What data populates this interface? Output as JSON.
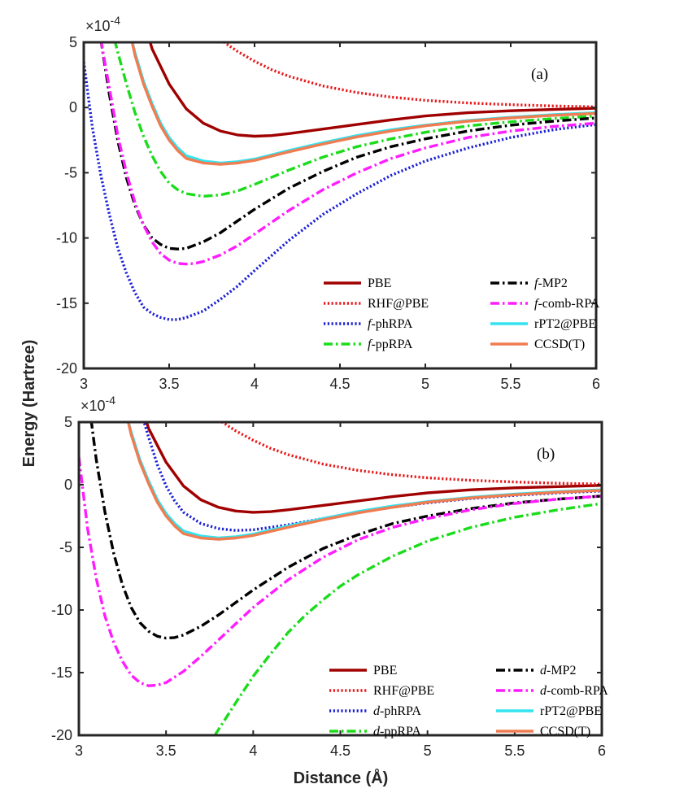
{
  "ylabel": "Energy (Hartree)",
  "xlabel": "Distance (Å)",
  "exponent_base": "×10",
  "exponent_power": "-4",
  "chart_data": [
    {
      "type": "line",
      "panel_label": "(a)",
      "xlim": [
        3,
        6
      ],
      "ylim": [
        -20,
        5
      ],
      "y_scale": "1e-4",
      "xticks": [
        "3",
        "3.5",
        "4",
        "4.5",
        "5",
        "5.5",
        "6"
      ],
      "yticks": [
        "5",
        "0",
        "-5",
        "-10",
        "-15",
        "-20"
      ],
      "legend_position": "bottom-right",
      "series": [
        {
          "name": "PBE",
          "prefix": "",
          "color": "#a00000",
          "style": "solid",
          "x": [
            3.3,
            3.4,
            3.5,
            3.6,
            3.7,
            3.8,
            3.9,
            4.0,
            4.1,
            4.2,
            4.4,
            4.6,
            4.8,
            5.0,
            5.25,
            5.5,
            5.75,
            6.0
          ],
          "y": [
            9.0,
            4.5,
            1.8,
            -0.1,
            -1.2,
            -1.8,
            -2.1,
            -2.2,
            -2.15,
            -2.0,
            -1.65,
            -1.3,
            -0.95,
            -0.65,
            -0.4,
            -0.25,
            -0.15,
            -0.05
          ]
        },
        {
          "name": "RHF@PBE",
          "prefix": "",
          "color": "#e8191b",
          "style": "dotted",
          "x": [
            3.8,
            3.9,
            4.0,
            4.1,
            4.2,
            4.4,
            4.6,
            4.8,
            5.0,
            5.25,
            5.5,
            5.75,
            6.0
          ],
          "y": [
            5.2,
            4.3,
            3.55,
            2.9,
            2.4,
            1.65,
            1.15,
            0.8,
            0.55,
            0.35,
            0.22,
            0.12,
            0.05
          ]
        },
        {
          "name": "phRPA",
          "prefix": "f-",
          "color": "#1c20d4",
          "style": "dotted",
          "x": [
            3.0,
            3.05,
            3.1,
            3.15,
            3.2,
            3.25,
            3.3,
            3.35,
            3.4,
            3.45,
            3.5,
            3.55,
            3.6,
            3.7,
            3.8,
            3.9,
            4.0,
            4.2,
            4.4,
            4.6,
            4.8,
            5.0,
            5.25,
            5.5,
            5.75,
            6.0
          ],
          "y": [
            3.5,
            -1.5,
            -5.2,
            -8.2,
            -10.8,
            -12.7,
            -14.2,
            -15.3,
            -15.8,
            -16.1,
            -16.25,
            -16.25,
            -16.1,
            -15.6,
            -14.7,
            -13.7,
            -12.5,
            -10.2,
            -8.2,
            -6.6,
            -5.2,
            -4.1,
            -3.1,
            -2.3,
            -1.7,
            -1.3
          ]
        },
        {
          "name": "ppRPA",
          "prefix": "f-",
          "color": "#1bdc1b",
          "style": "dashdot",
          "x": [
            3.18,
            3.2,
            3.25,
            3.3,
            3.35,
            3.4,
            3.45,
            3.5,
            3.55,
            3.6,
            3.7,
            3.8,
            3.9,
            4.0,
            4.2,
            4.4,
            4.6,
            4.8,
            5.0,
            5.25,
            5.5,
            5.75,
            6.0
          ],
          "y": [
            5.2,
            4.2,
            1.8,
            -0.4,
            -2.2,
            -3.7,
            -4.9,
            -5.8,
            -6.3,
            -6.6,
            -6.8,
            -6.7,
            -6.4,
            -5.9,
            -4.8,
            -3.8,
            -3.0,
            -2.4,
            -1.9,
            -1.4,
            -1.1,
            -0.85,
            -0.65
          ]
        },
        {
          "name": "MP2",
          "prefix": "f-",
          "color": "#000000",
          "style": "dashdot",
          "x": [
            3.1,
            3.15,
            3.2,
            3.25,
            3.3,
            3.35,
            3.4,
            3.45,
            3.5,
            3.55,
            3.6,
            3.7,
            3.8,
            3.9,
            4.0,
            4.2,
            4.4,
            4.6,
            4.8,
            5.0,
            5.25,
            5.5,
            5.75,
            6.0
          ],
          "y": [
            5.2,
            1.0,
            -2.6,
            -5.4,
            -7.5,
            -9.0,
            -10.0,
            -10.5,
            -10.8,
            -10.85,
            -10.8,
            -10.3,
            -9.6,
            -8.7,
            -7.8,
            -6.2,
            -4.9,
            -3.8,
            -3.0,
            -2.4,
            -1.8,
            -1.35,
            -1.05,
            -0.8
          ]
        },
        {
          "name": "comb-RPA",
          "prefix": "f-",
          "color": "#ff1cff",
          "style": "dashdot",
          "x": [
            3.1,
            3.15,
            3.2,
            3.25,
            3.3,
            3.35,
            3.4,
            3.45,
            3.5,
            3.55,
            3.6,
            3.65,
            3.7,
            3.8,
            3.9,
            4.0,
            4.2,
            4.4,
            4.6,
            4.8,
            5.0,
            5.25,
            5.5,
            5.75,
            6.0
          ],
          "y": [
            5.2,
            1.5,
            -2.2,
            -5.0,
            -7.3,
            -9.0,
            -10.3,
            -11.2,
            -11.7,
            -11.95,
            -12.0,
            -11.95,
            -11.8,
            -11.3,
            -10.6,
            -9.7,
            -7.9,
            -6.3,
            -5.0,
            -3.9,
            -3.1,
            -2.3,
            -1.8,
            -1.45,
            -1.2
          ]
        },
        {
          "name": "rPT2@PBE",
          "prefix": "",
          "color": "#33e3f0",
          "style": "solid",
          "x": [
            3.28,
            3.3,
            3.35,
            3.4,
            3.45,
            3.5,
            3.55,
            3.6,
            3.7,
            3.8,
            3.9,
            4.0,
            4.2,
            4.4,
            4.6,
            4.8,
            5.0,
            5.25,
            5.5,
            5.75,
            6.0
          ],
          "y": [
            5.2,
            4.2,
            2.0,
            0.3,
            -1.2,
            -2.3,
            -3.1,
            -3.7,
            -4.1,
            -4.25,
            -4.15,
            -3.95,
            -3.3,
            -2.7,
            -2.15,
            -1.7,
            -1.35,
            -1.0,
            -0.75,
            -0.55,
            -0.4
          ]
        },
        {
          "name": "CCSD(T)",
          "prefix": "",
          "color": "#f07c50",
          "style": "solid",
          "x": [
            3.28,
            3.3,
            3.35,
            3.4,
            3.45,
            3.5,
            3.55,
            3.6,
            3.7,
            3.8,
            3.9,
            4.0,
            4.2,
            4.4,
            4.6,
            4.8,
            5.0,
            5.25,
            5.5,
            5.75,
            6.0
          ],
          "y": [
            5.2,
            4.0,
            1.8,
            0.1,
            -1.4,
            -2.5,
            -3.3,
            -3.9,
            -4.25,
            -4.35,
            -4.25,
            -4.05,
            -3.4,
            -2.8,
            -2.25,
            -1.8,
            -1.4,
            -1.05,
            -0.8,
            -0.6,
            -0.45
          ]
        }
      ]
    },
    {
      "type": "line",
      "panel_label": "(b)",
      "xlim": [
        3,
        6
      ],
      "ylim": [
        -20,
        5
      ],
      "y_scale": "1e-4",
      "xticks": [
        "3",
        "3.5",
        "4",
        "4.5",
        "5",
        "5.5",
        "6"
      ],
      "yticks": [
        "5",
        "0",
        "-5",
        "-10",
        "-15",
        "-20"
      ],
      "legend_position": "bottom-right",
      "series": [
        {
          "name": "PBE",
          "prefix": "",
          "color": "#a00000",
          "style": "solid",
          "x": [
            3.3,
            3.4,
            3.5,
            3.6,
            3.7,
            3.8,
            3.9,
            4.0,
            4.1,
            4.2,
            4.4,
            4.6,
            4.8,
            5.0,
            5.25,
            5.5,
            5.75,
            6.0
          ],
          "y": [
            9.0,
            4.5,
            1.8,
            -0.1,
            -1.2,
            -1.8,
            -2.1,
            -2.2,
            -2.15,
            -2.0,
            -1.65,
            -1.3,
            -0.95,
            -0.65,
            -0.4,
            -0.25,
            -0.15,
            -0.05
          ]
        },
        {
          "name": "RHF@PBE",
          "prefix": "",
          "color": "#e8191b",
          "style": "dotted",
          "x": [
            3.8,
            3.9,
            4.0,
            4.1,
            4.2,
            4.4,
            4.6,
            4.8,
            5.0,
            5.25,
            5.5,
            5.75,
            6.0
          ],
          "y": [
            5.2,
            4.3,
            3.55,
            2.9,
            2.4,
            1.65,
            1.15,
            0.8,
            0.55,
            0.35,
            0.22,
            0.12,
            0.05
          ]
        },
        {
          "name": "phRPA",
          "prefix": "d-",
          "color": "#1c20d4",
          "style": "dotted",
          "x": [
            3.37,
            3.4,
            3.45,
            3.5,
            3.55,
            3.6,
            3.7,
            3.8,
            3.9,
            4.0,
            4.2,
            4.4,
            4.6,
            4.8,
            5.0,
            5.25,
            5.5,
            5.75,
            6.0
          ],
          "y": [
            5.2,
            3.8,
            1.6,
            -0.1,
            -1.3,
            -2.2,
            -3.1,
            -3.5,
            -3.65,
            -3.6,
            -3.2,
            -2.7,
            -2.2,
            -1.8,
            -1.45,
            -1.1,
            -0.85,
            -0.65,
            -0.5
          ]
        },
        {
          "name": "ppRPA",
          "prefix": "d-",
          "color": "#1bdc1b",
          "style": "dashdot",
          "x": [
            3.78,
            3.9,
            4.0,
            4.1,
            4.2,
            4.3,
            4.4,
            4.5,
            4.6,
            4.8,
            5.0,
            5.25,
            5.5,
            5.75,
            6.0
          ],
          "y": [
            -20,
            -17.4,
            -15.3,
            -13.5,
            -11.8,
            -10.4,
            -9.2,
            -8.1,
            -7.2,
            -5.7,
            -4.5,
            -3.4,
            -2.6,
            -2.0,
            -1.5
          ]
        },
        {
          "name": "MP2",
          "prefix": "d-",
          "color": "#000000",
          "style": "dashdot",
          "x": [
            3.07,
            3.1,
            3.15,
            3.2,
            3.25,
            3.3,
            3.35,
            3.4,
            3.45,
            3.5,
            3.55,
            3.6,
            3.7,
            3.8,
            3.9,
            4.0,
            4.2,
            4.4,
            4.6,
            4.8,
            5.0,
            5.25,
            5.5,
            5.75,
            6.0
          ],
          "y": [
            5.2,
            2.0,
            -2.2,
            -5.5,
            -8.0,
            -9.8,
            -11.0,
            -11.7,
            -12.1,
            -12.25,
            -12.2,
            -12.0,
            -11.3,
            -10.4,
            -9.4,
            -8.4,
            -6.6,
            -5.1,
            -4.0,
            -3.1,
            -2.5,
            -1.9,
            -1.45,
            -1.15,
            -0.9
          ]
        },
        {
          "name": "comb-RPA",
          "prefix": "d-",
          "color": "#ff1cff",
          "style": "dashdot",
          "x": [
            3.0,
            3.05,
            3.1,
            3.15,
            3.2,
            3.25,
            3.3,
            3.35,
            3.4,
            3.45,
            3.5,
            3.6,
            3.7,
            3.8,
            3.9,
            4.0,
            4.2,
            4.4,
            4.6,
            4.8,
            5.0,
            5.25,
            5.5,
            5.75,
            6.0
          ],
          "y": [
            2.2,
            -3.5,
            -7.5,
            -10.5,
            -12.6,
            -14.1,
            -15.2,
            -15.8,
            -16.05,
            -16.0,
            -15.8,
            -14.9,
            -13.7,
            -12.4,
            -11.1,
            -9.8,
            -7.6,
            -5.8,
            -4.4,
            -3.4,
            -2.7,
            -2.0,
            -1.5,
            -1.15,
            -0.9
          ]
        },
        {
          "name": "rPT2@PBE",
          "prefix": "",
          "color": "#33e3f0",
          "style": "solid",
          "x": [
            3.28,
            3.3,
            3.35,
            3.4,
            3.45,
            3.5,
            3.55,
            3.6,
            3.7,
            3.8,
            3.9,
            4.0,
            4.2,
            4.4,
            4.6,
            4.8,
            5.0,
            5.25,
            5.5,
            5.75,
            6.0
          ],
          "y": [
            5.2,
            4.2,
            2.0,
            0.3,
            -1.2,
            -2.3,
            -3.1,
            -3.7,
            -4.1,
            -4.25,
            -4.15,
            -3.95,
            -3.3,
            -2.7,
            -2.15,
            -1.7,
            -1.35,
            -1.0,
            -0.75,
            -0.55,
            -0.4
          ]
        },
        {
          "name": "CCSD(T)",
          "prefix": "",
          "color": "#f07c50",
          "style": "solid",
          "x": [
            3.28,
            3.3,
            3.35,
            3.4,
            3.45,
            3.5,
            3.55,
            3.6,
            3.7,
            3.8,
            3.9,
            4.0,
            4.2,
            4.4,
            4.6,
            4.8,
            5.0,
            5.25,
            5.5,
            5.75,
            6.0
          ],
          "y": [
            5.2,
            4.0,
            1.8,
            0.1,
            -1.4,
            -2.5,
            -3.3,
            -3.9,
            -4.25,
            -4.35,
            -4.25,
            -4.05,
            -3.4,
            -2.8,
            -2.25,
            -1.8,
            -1.4,
            -1.05,
            -0.8,
            -0.6,
            -0.45
          ]
        }
      ]
    }
  ]
}
